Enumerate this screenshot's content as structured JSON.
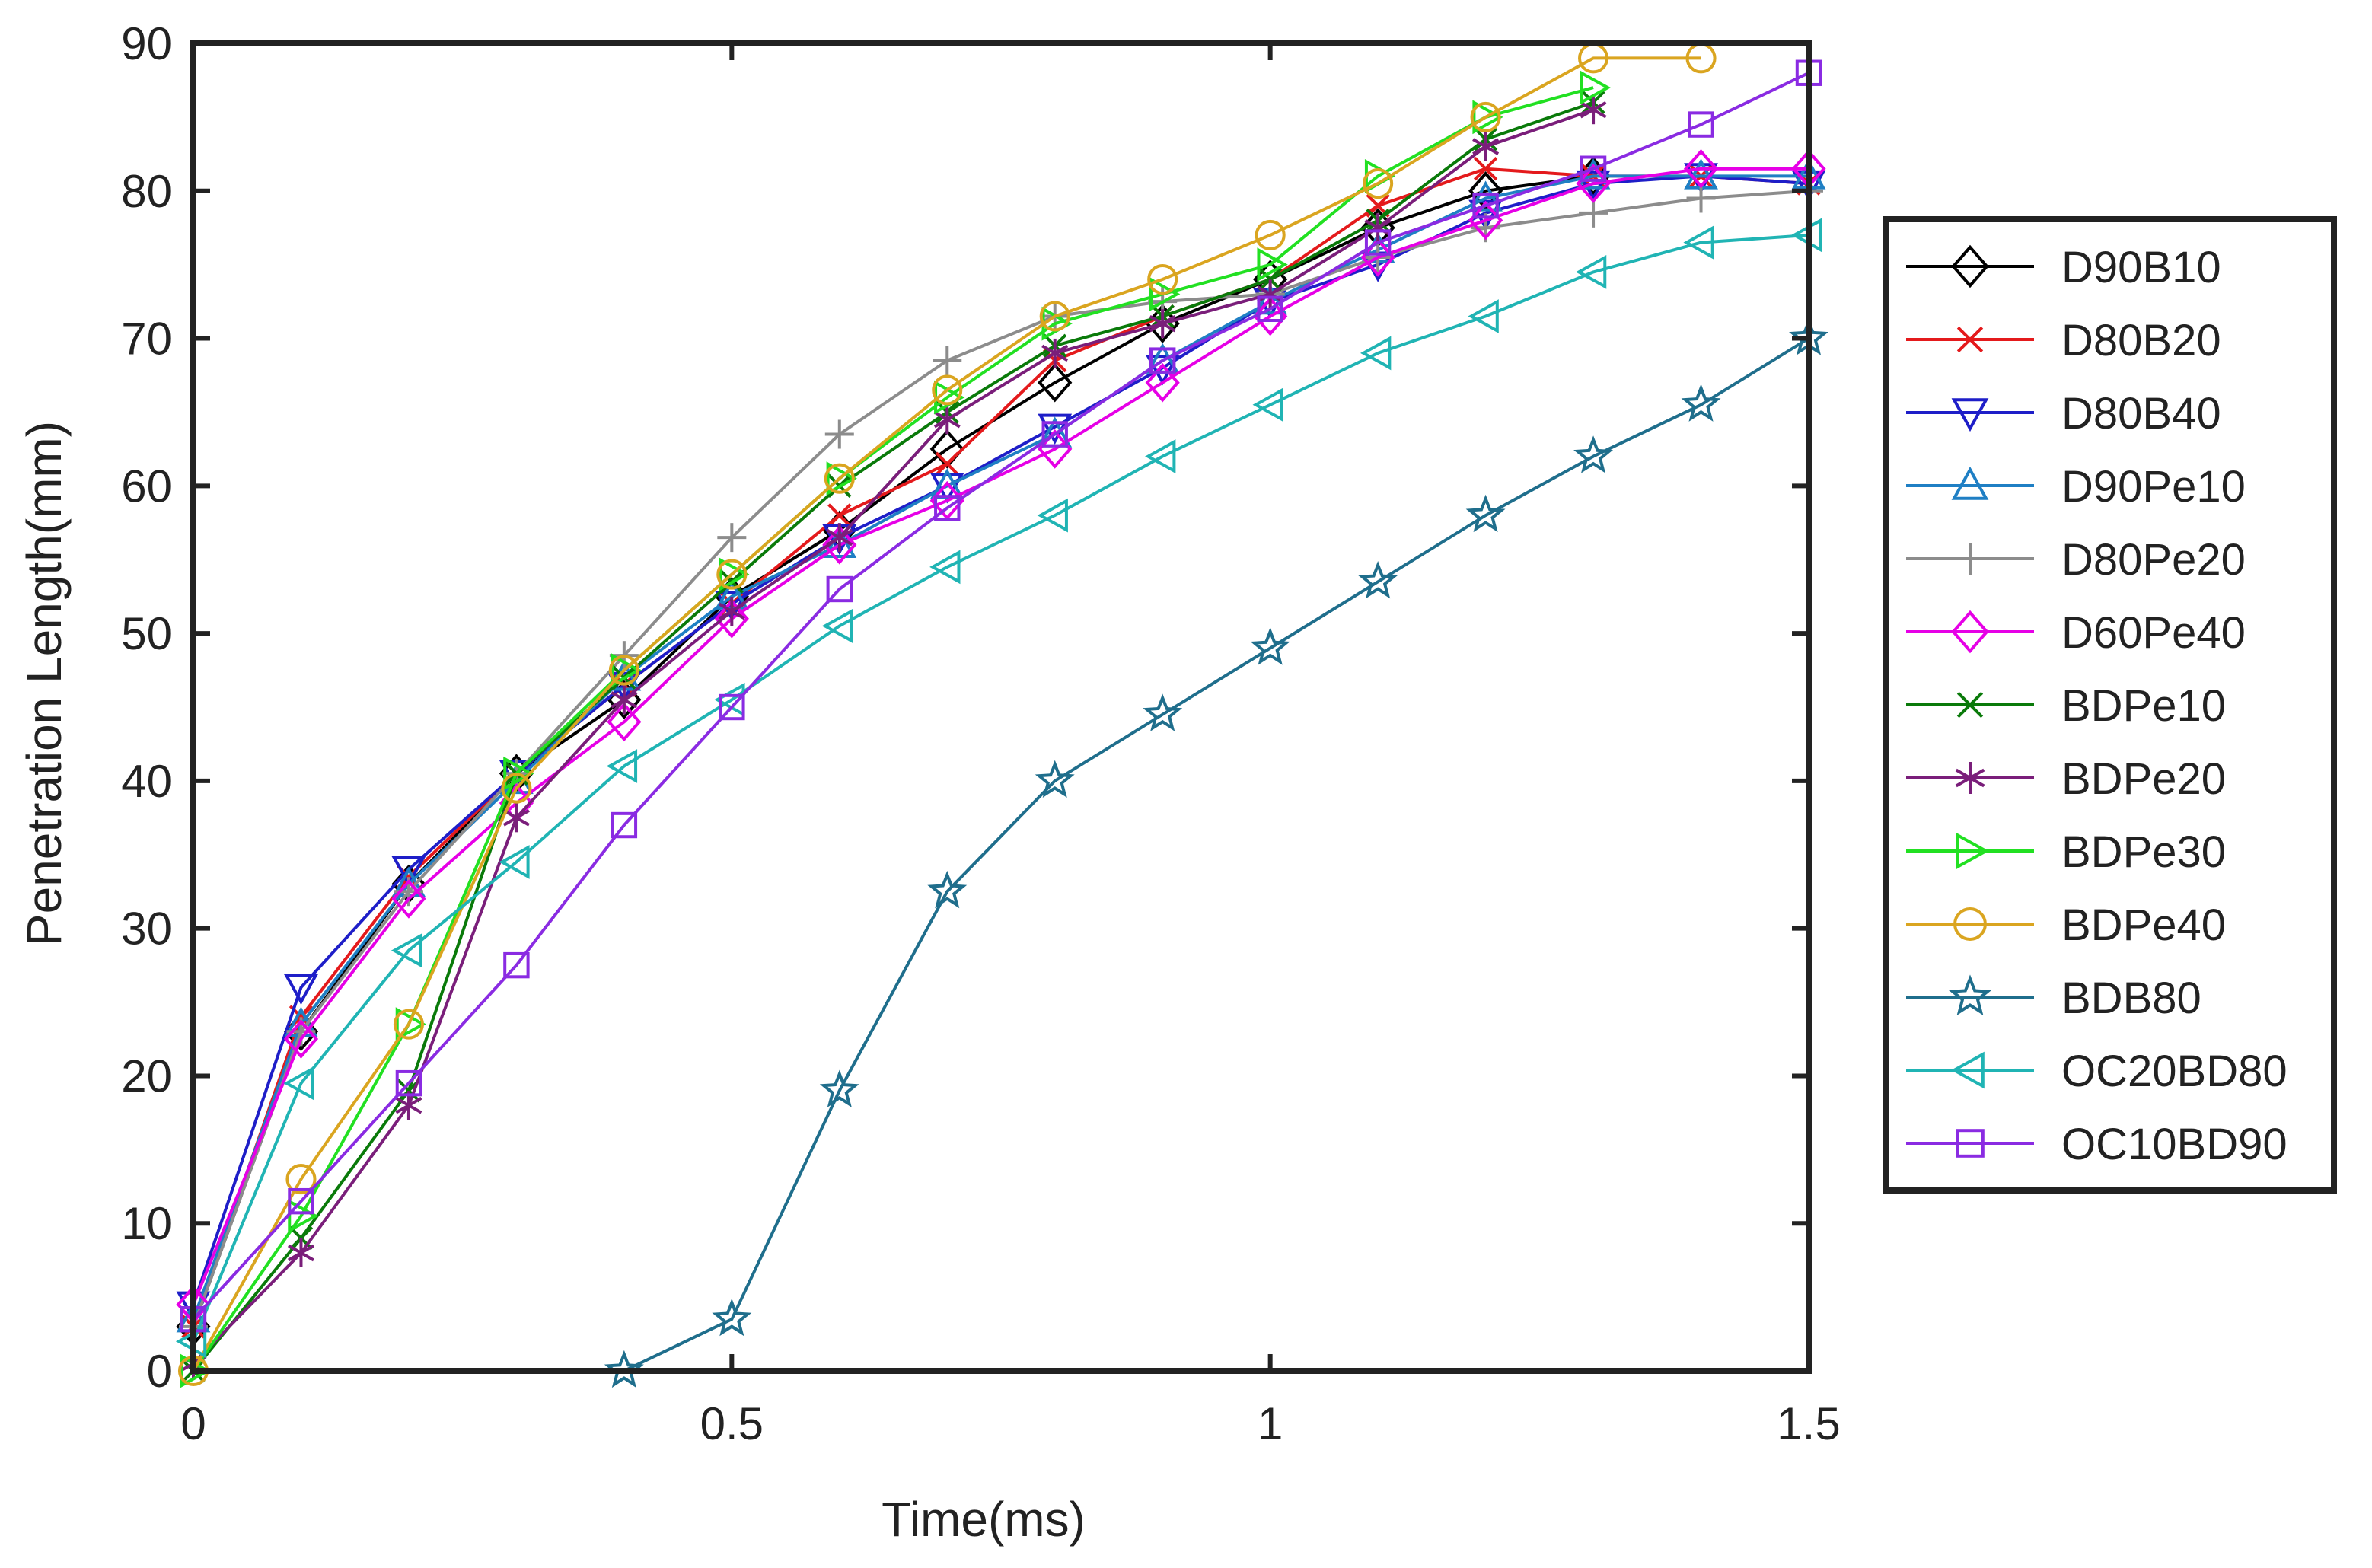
{
  "chart_data": {
    "type": "line",
    "title": "",
    "xlabel": "Time(ms)",
    "ylabel": "Penetration Length(mm)",
    "xlim": [
      0,
      1.5
    ],
    "ylim": [
      0,
      90
    ],
    "xticks": [
      0,
      0.5,
      1,
      1.5
    ],
    "xtick_labels": [
      "0",
      "0.5",
      "1",
      "1.5"
    ],
    "yticks": [
      0,
      10,
      20,
      30,
      40,
      50,
      60,
      70,
      80,
      90
    ],
    "ytick_labels": [
      "0",
      "10",
      "20",
      "30",
      "40",
      "50",
      "60",
      "70",
      "80",
      "90"
    ],
    "grid": false,
    "legend_position": "outside-right",
    "series": [
      {
        "name": "D90B10",
        "color": "#000000",
        "marker": "diamond",
        "x": [
          0,
          0.1,
          0.2,
          0.3,
          0.4,
          0.5,
          0.6,
          0.7,
          0.8,
          0.9,
          1.0,
          1.1,
          1.2,
          1.3
        ],
        "y": [
          3,
          23,
          33,
          40.5,
          45.5,
          52.5,
          57,
          62.5,
          67,
          71,
          74,
          77.5,
          80,
          81
        ]
      },
      {
        "name": "D80B20",
        "color": "#E41A1C",
        "marker": "x",
        "x": [
          0,
          0.1,
          0.2,
          0.3,
          0.4,
          0.5,
          0.6,
          0.7,
          0.8,
          0.9,
          1.0,
          1.1,
          1.2,
          1.3,
          1.4,
          1.5
        ],
        "y": [
          3,
          24,
          33.5,
          40.5,
          46.5,
          52,
          58,
          61.5,
          68.5,
          71.5,
          74,
          79,
          81.5,
          81,
          81,
          80.5
        ]
      },
      {
        "name": "D80B40",
        "color": "#1E1EC8",
        "marker": "triangle-down",
        "x": [
          0,
          0.1,
          0.2,
          0.3,
          0.4,
          0.5,
          0.6,
          0.7,
          0.8,
          0.9,
          1.0,
          1.1,
          1.2,
          1.3,
          1.4,
          1.5
        ],
        "y": [
          4.5,
          26,
          34,
          40.5,
          46.5,
          52,
          56.5,
          60,
          64,
          68,
          72.5,
          75,
          78.5,
          80.5,
          81,
          80.5
        ]
      },
      {
        "name": "D90Pe10",
        "color": "#1F7FC4",
        "marker": "triangle-up",
        "x": [
          0,
          0.1,
          0.2,
          0.3,
          0.4,
          0.5,
          0.6,
          0.7,
          0.8,
          0.9,
          1.0,
          1.1,
          1.2,
          1.3,
          1.4,
          1.5
        ],
        "y": [
          3.5,
          23.5,
          33,
          40,
          47,
          52.5,
          56,
          60,
          63.5,
          68.5,
          72.5,
          76,
          79.5,
          81,
          81,
          81
        ]
      },
      {
        "name": "D80Pe20",
        "color": "#8C8C8C",
        "marker": "plus",
        "x": [
          0,
          0.1,
          0.2,
          0.3,
          0.4,
          0.5,
          0.6,
          0.7,
          0.8,
          0.9,
          1.0,
          1.1,
          1.2,
          1.3,
          1.4,
          1.5
        ],
        "y": [
          3,
          23,
          32.5,
          40.5,
          48.5,
          56.5,
          63.5,
          68.5,
          71.5,
          72.5,
          73,
          75.5,
          77.5,
          78.5,
          79.5,
          80
        ]
      },
      {
        "name": "D60Pe40",
        "color": "#E600E6",
        "marker": "diamond",
        "x": [
          0,
          0.1,
          0.2,
          0.3,
          0.4,
          0.5,
          0.6,
          0.7,
          0.8,
          0.9,
          1.0,
          1.1,
          1.2,
          1.3,
          1.4,
          1.5
        ],
        "y": [
          4.5,
          22.5,
          32,
          38.5,
          44,
          51,
          56,
          59,
          62.5,
          67,
          71.5,
          75.5,
          78,
          80.5,
          81.5,
          81.5
        ]
      },
      {
        "name": "BDPe10",
        "color": "#0A7A0A",
        "marker": "x",
        "x": [
          0,
          0.1,
          0.2,
          0.3,
          0.4,
          0.5,
          0.6,
          0.7,
          0.8,
          0.9,
          1.0,
          1.1,
          1.2,
          1.3
        ],
        "y": [
          0,
          9,
          19,
          40.5,
          47,
          53.5,
          60,
          65,
          69.5,
          71.5,
          74,
          78,
          83.5,
          86
        ]
      },
      {
        "name": "BDPe20",
        "color": "#7A1E7A",
        "marker": "asterisk",
        "x": [
          0,
          0.1,
          0.2,
          0.3,
          0.4,
          0.5,
          0.6,
          0.7,
          0.8,
          0.9,
          1.0,
          1.1,
          1.2,
          1.3
        ],
        "y": [
          0.5,
          8,
          18,
          37.5,
          45.5,
          51.5,
          56.5,
          64.5,
          69,
          71,
          73,
          77.5,
          83,
          85.5
        ]
      },
      {
        "name": "BDPe30",
        "color": "#22E022",
        "marker": "triangle-right",
        "x": [
          0,
          0.1,
          0.2,
          0.3,
          0.4,
          0.5,
          0.6,
          0.7,
          0.8,
          0.9,
          1.0,
          1.1,
          1.2,
          1.3
        ],
        "y": [
          0,
          10.5,
          23.5,
          40.5,
          47.5,
          54,
          60.5,
          66,
          71,
          73,
          75,
          81,
          85,
          87
        ]
      },
      {
        "name": "BDPe40",
        "color": "#DAA520",
        "marker": "circle",
        "x": [
          0,
          0.1,
          0.2,
          0.3,
          0.4,
          0.5,
          0.6,
          0.7,
          0.8,
          0.9,
          1.0,
          1.1,
          1.2,
          1.3,
          1.4
        ],
        "y": [
          0,
          13,
          23.5,
          39.5,
          47.5,
          54,
          60.5,
          66.5,
          71.5,
          74,
          77,
          80.5,
          85,
          89,
          89
        ]
      },
      {
        "name": "BDB80",
        "color": "#1F6E8C",
        "marker": "star",
        "x": [
          0.4,
          0.5,
          0.6,
          0.7,
          0.8,
          0.9,
          1.0,
          1.1,
          1.2,
          1.3,
          1.4,
          1.5
        ],
        "y": [
          0,
          3.5,
          19,
          32.5,
          40,
          44.5,
          49,
          53.5,
          58,
          62,
          65.5,
          70
        ]
      },
      {
        "name": "OC20BD80",
        "color": "#20B4B4",
        "marker": "triangle-left",
        "x": [
          0,
          0.1,
          0.2,
          0.3,
          0.4,
          0.5,
          0.6,
          0.7,
          0.8,
          0.9,
          1.0,
          1.1,
          1.2,
          1.3,
          1.4,
          1.5
        ],
        "y": [
          2,
          19.5,
          28.5,
          34.5,
          41,
          45.5,
          50.5,
          54.5,
          58,
          62,
          65.5,
          69,
          71.5,
          74.5,
          76.5,
          77
        ]
      },
      {
        "name": "OC10BD90",
        "color": "#8A2BE2",
        "marker": "square",
        "x": [
          0,
          0.1,
          0.2,
          0.3,
          0.4,
          0.5,
          0.6,
          0.7,
          0.8,
          0.9,
          1.0,
          1.1,
          1.2,
          1.3,
          1.4,
          1.5
        ],
        "y": [
          3.5,
          11.5,
          19.5,
          27.5,
          37,
          45,
          53,
          58.5,
          63.5,
          68.5,
          72,
          76.5,
          79,
          81.5,
          84.5,
          88
        ]
      }
    ]
  }
}
